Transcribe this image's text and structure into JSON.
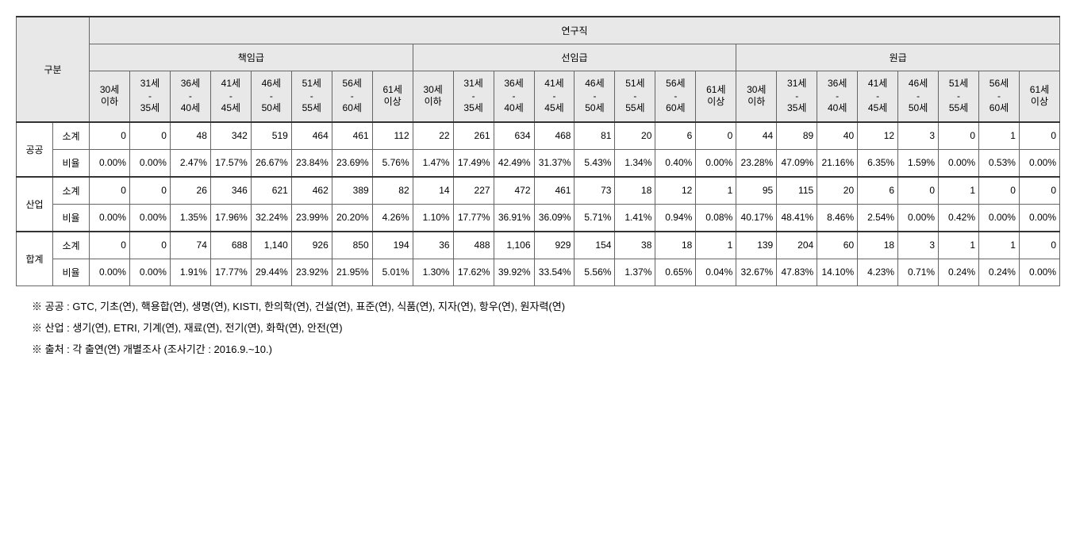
{
  "header": {
    "category": "구분",
    "top": "연구직",
    "groups": [
      "책임급",
      "선임급",
      "원급"
    ],
    "ages": [
      "30세\n이하",
      "31세\n-\n35세",
      "36세\n-\n40세",
      "41세\n-\n45세",
      "46세\n-\n50세",
      "51세\n-\n55세",
      "56세\n-\n60세",
      "61세\n이상"
    ]
  },
  "row_labels": {
    "subtotal": "소계",
    "ratio": "비율"
  },
  "categories": [
    {
      "name": "공공",
      "subtotal": [
        "0",
        "0",
        "48",
        "342",
        "519",
        "464",
        "461",
        "112",
        "22",
        "261",
        "634",
        "468",
        "81",
        "20",
        "6",
        "0",
        "44",
        "89",
        "40",
        "12",
        "3",
        "0",
        "1",
        "0"
      ],
      "ratio": [
        "0.00%",
        "0.00%",
        "2.47%",
        "17.57%",
        "26.67%",
        "23.84%",
        "23.69%",
        "5.76%",
        "1.47%",
        "17.49%",
        "42.49%",
        "31.37%",
        "5.43%",
        "1.34%",
        "0.40%",
        "0.00%",
        "23.28%",
        "47.09%",
        "21.16%",
        "6.35%",
        "1.59%",
        "0.00%",
        "0.53%",
        "0.00%"
      ]
    },
    {
      "name": "산업",
      "subtotal": [
        "0",
        "0",
        "26",
        "346",
        "621",
        "462",
        "389",
        "82",
        "14",
        "227",
        "472",
        "461",
        "73",
        "18",
        "12",
        "1",
        "95",
        "115",
        "20",
        "6",
        "0",
        "1",
        "0",
        "0"
      ],
      "ratio": [
        "0.00%",
        "0.00%",
        "1.35%",
        "17.96%",
        "32.24%",
        "23.99%",
        "20.20%",
        "4.26%",
        "1.10%",
        "17.77%",
        "36.91%",
        "36.09%",
        "5.71%",
        "1.41%",
        "0.94%",
        "0.08%",
        "40.17%",
        "48.41%",
        "8.46%",
        "2.54%",
        "0.00%",
        "0.42%",
        "0.00%",
        "0.00%"
      ]
    },
    {
      "name": "합계",
      "subtotal": [
        "0",
        "0",
        "74",
        "688",
        "1,140",
        "926",
        "850",
        "194",
        "36",
        "488",
        "1,106",
        "929",
        "154",
        "38",
        "18",
        "1",
        "139",
        "204",
        "60",
        "18",
        "3",
        "1",
        "1",
        "0"
      ],
      "ratio": [
        "0.00%",
        "0.00%",
        "1.91%",
        "17.77%",
        "29.44%",
        "23.92%",
        "21.95%",
        "5.01%",
        "1.30%",
        "17.62%",
        "39.92%",
        "33.54%",
        "5.56%",
        "1.37%",
        "0.65%",
        "0.04%",
        "32.67%",
        "47.83%",
        "14.10%",
        "4.23%",
        "0.71%",
        "0.24%",
        "0.24%",
        "0.00%"
      ]
    }
  ],
  "footnotes": [
    "※ 공공 : GTC, 기초(연), 핵용합(연), 생명(연), KISTI, 한의학(연), 건설(연), 표준(연), 식품(연), 지자(연), 항우(연), 원자력(연)",
    "※ 산업 : 생기(연), ETRI, 기계(연), 재료(연), 전기(연), 화학(연), 안전(연)",
    "※ 출처 : 각 출연(연) 개별조사 (조사기간 : 2016.9.~10.)"
  ],
  "style": {
    "header_bg": "#e8e8e8",
    "border_color": "#666666",
    "font_size_table": 12,
    "font_size_footnote": 13
  }
}
